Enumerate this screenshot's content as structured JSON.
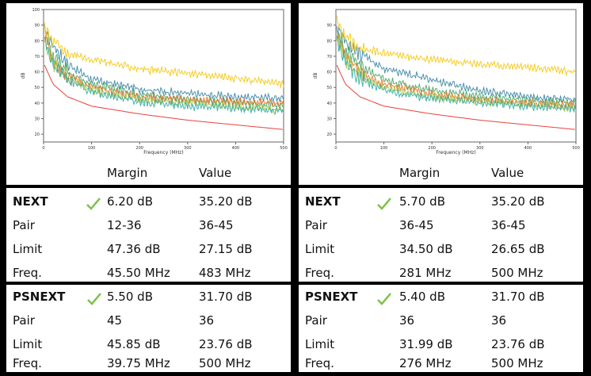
{
  "colors": {
    "limit_line": "#e8413a",
    "check": "#7cc24a",
    "series": [
      "#f5c400",
      "#2f7f9f",
      "#3aa05a",
      "#e86a1a",
      "#9fc43a",
      "#2aa6a0",
      "#c7a300"
    ]
  },
  "panels": [
    {
      "chart_data": {
        "type": "line",
        "xlabel": "Frequency (MHz)",
        "ylabel": "dB",
        "xlim": [
          0,
          500
        ],
        "ylim": [
          15,
          100
        ],
        "xticks": [
          "0",
          "100",
          "200",
          "300",
          "400",
          "500"
        ],
        "yticks": [
          "20",
          "30",
          "40",
          "50",
          "60",
          "70",
          "80",
          "90",
          "100"
        ],
        "limit_line": {
          "x": [
            1,
            20,
            50,
            100,
            200,
            300,
            400,
            500
          ],
          "y": [
            65,
            52,
            44,
            38,
            33,
            29,
            26,
            23
          ]
        },
        "series": [
          {
            "x": [
              1,
              20,
              50,
              100,
              200,
              300,
              400,
              500
            ],
            "y": [
              90,
              80,
              72,
              68,
              62,
              59,
              56,
              52
            ]
          },
          {
            "x": [
              1,
              20,
              50,
              100,
              200,
              300,
              400,
              500
            ],
            "y": [
              88,
              77,
              65,
              55,
              49,
              46,
              44,
              43
            ]
          },
          {
            "x": [
              1,
              20,
              50,
              100,
              200,
              300,
              400,
              500
            ],
            "y": [
              86,
              70,
              60,
              52,
              46,
              42,
              40,
              38
            ]
          },
          {
            "x": [
              1,
              20,
              50,
              100,
              200,
              300,
              400,
              500
            ],
            "y": [
              84,
              68,
              58,
              50,
              44,
              42,
              41,
              40
            ]
          },
          {
            "x": [
              1,
              20,
              50,
              100,
              200,
              300,
              400,
              500
            ],
            "y": [
              82,
              66,
              57,
              48,
              42,
              40,
              38,
              36
            ]
          },
          {
            "x": [
              1,
              20,
              50,
              100,
              200,
              300,
              400,
              500
            ],
            "y": [
              80,
              64,
              55,
              47,
              41,
              38,
              37,
              35
            ]
          }
        ]
      },
      "header": {
        "margin": "Margin",
        "value": "Value"
      },
      "next": {
        "title": "NEXT",
        "margin": "6.20 dB",
        "value": "35.20 dB",
        "pair_label": "Pair",
        "pair_margin": "12-36",
        "pair_value": "36-45",
        "limit_label": "Limit",
        "limit_margin": "47.36 dB",
        "limit_value": "27.15 dB",
        "freq_label": "Freq.",
        "freq_margin": "45.50 MHz",
        "freq_value": "483 MHz"
      },
      "psnext": {
        "title": "PSNEXT",
        "margin": "5.50 dB",
        "value": "31.70 dB",
        "pair_label": "Pair",
        "pair_margin": "45",
        "pair_value": "36",
        "limit_label": "Limit",
        "limit_margin": "45.85 dB",
        "limit_value": "23.76 dB",
        "freq_label": "Freq.",
        "freq_margin": "39.75 MHz",
        "freq_value": "500 MHz"
      }
    },
    {
      "chart_data": {
        "type": "line",
        "xlabel": "Frequency (MHz)",
        "ylabel": "dB",
        "xlim": [
          0,
          500
        ],
        "ylim": [
          15,
          100
        ],
        "xticks": [
          "0",
          "100",
          "200",
          "300",
          "400",
          "500"
        ],
        "yticks": [
          "20",
          "30",
          "40",
          "50",
          "60",
          "70",
          "80",
          "90"
        ],
        "limit_line": {
          "x": [
            1,
            20,
            50,
            100,
            200,
            300,
            400,
            500
          ],
          "y": [
            65,
            52,
            44,
            38,
            33,
            29,
            26,
            23
          ]
        },
        "series": [
          {
            "x": [
              1,
              20,
              50,
              100,
              200,
              300,
              400,
              500
            ],
            "y": [
              92,
              82,
              75,
              72,
              68,
              65,
              63,
              60
            ]
          },
          {
            "x": [
              1,
              20,
              50,
              100,
              200,
              300,
              400,
              500
            ],
            "y": [
              90,
              80,
              72,
              62,
              55,
              48,
              44,
              42
            ]
          },
          {
            "x": [
              1,
              20,
              50,
              100,
              200,
              300,
              400,
              500
            ],
            "y": [
              88,
              74,
              64,
              55,
              48,
              44,
              42,
              40
            ]
          },
          {
            "x": [
              1,
              20,
              50,
              100,
              200,
              300,
              400,
              500
            ],
            "y": [
              86,
              70,
              60,
              52,
              46,
              42,
              40,
              39
            ]
          },
          {
            "x": [
              1,
              20,
              50,
              100,
              200,
              300,
              400,
              500
            ],
            "y": [
              84,
              68,
              58,
              50,
              44,
              41,
              39,
              37
            ]
          },
          {
            "x": [
              1,
              20,
              50,
              100,
              200,
              300,
              400,
              500
            ],
            "y": [
              82,
              66,
              56,
              48,
              43,
              40,
              38,
              36
            ]
          }
        ]
      },
      "header": {
        "margin": "Margin",
        "value": "Value"
      },
      "next": {
        "title": "NEXT",
        "margin": "5.70 dB",
        "value": "35.20 dB",
        "pair_label": "Pair",
        "pair_margin": "36-45",
        "pair_value": "36-45",
        "limit_label": "Limit",
        "limit_margin": "34.50 dB",
        "limit_value": "26.65 dB",
        "freq_label": "Freq.",
        "freq_margin": "281 MHz",
        "freq_value": "500 MHz"
      },
      "psnext": {
        "title": "PSNEXT",
        "margin": "5.40 dB",
        "value": "31.70 dB",
        "pair_label": "Pair",
        "pair_margin": "36",
        "pair_value": "36",
        "limit_label": "Limit",
        "limit_margin": "31.99 dB",
        "limit_value": "23.76 dB",
        "freq_label": "Freq.",
        "freq_margin": "276 MHz",
        "freq_value": "500 MHz"
      }
    }
  ]
}
